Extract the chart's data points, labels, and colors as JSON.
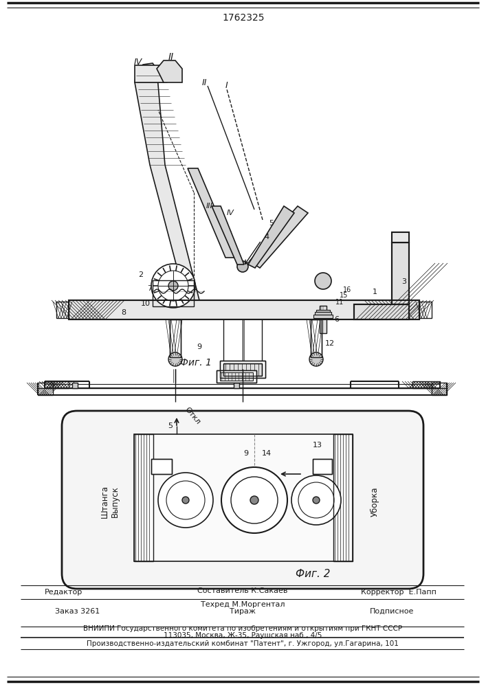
{
  "title": "1762325",
  "fig1_label": "Фиг. 1",
  "fig2_label": "Фиг. 2",
  "editor_line": "Редактор",
  "composer_line": "Составитель К.Сакаев",
  "techred_line": "Техред М.Моргентал",
  "corrector_line": "Корректор  Е.Папп",
  "order_line": "Заказ 3261",
  "tirazh_line": "Тираж",
  "podpisnoe_line": "Подписное",
  "vniip_line": "ВНИИПИ Государственного комитета по изобретениям и открытиям при ГКНТ СССР",
  "address_line": "113035, Москва, Ж-35, Раушская наб., 4/5",
  "factory_line": "Производственно-издательский комбинат \"Патент\", г. Ужгород, ул.Гагарина, 101",
  "bg_color": "#ffffff",
  "line_color": "#1a1a1a",
  "text_color": "#1a1a1a",
  "hatch_color": "#555555"
}
